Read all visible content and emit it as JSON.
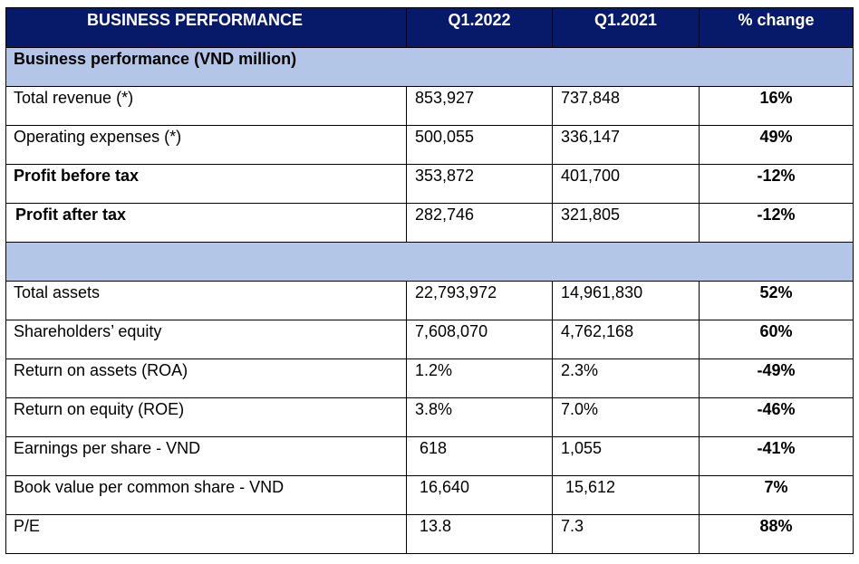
{
  "header": {
    "col_label": "BUSINESS PERFORMANCE",
    "col_q1_2022": "Q1.2022",
    "col_q1_2021": "Q1.2021",
    "col_change": "% change"
  },
  "section1": {
    "title": "Business performance (VND million)"
  },
  "rows1": [
    {
      "label": "Total revenue (*)",
      "q2022": "853,927",
      "q2021": "737,848",
      "change": "16%",
      "bold": false
    },
    {
      "label": "Operating expenses (*)",
      "q2022": "500,055",
      "q2021": "336,147",
      "change": "49%",
      "bold": false
    },
    {
      "label": "Profit before tax",
      "q2022": "353,872",
      "q2021": "401,700",
      "change": "-12%",
      "bold": true
    },
    {
      "label": "Profit after tax",
      "q2022": "282,746",
      "q2021": "321,805",
      "change": "-12%",
      "bold": true
    }
  ],
  "section2": {
    "title": ""
  },
  "rows2": [
    {
      "label": "Total assets",
      "q2022": "22,793,972",
      "q2021": "14,961,830",
      "change": "52%"
    },
    {
      "label": "Shareholders’ equity",
      "q2022": "7,608,070",
      "q2021": "4,762,168",
      "change": "60%"
    },
    {
      "label": "Return on assets (ROA)",
      "q2022": "1.2%",
      "q2021": "2.3%",
      "change": "-49%"
    },
    {
      "label": "Return on equity (ROE)",
      "q2022": "3.8%",
      "q2021": "7.0%",
      "change": "-46%"
    },
    {
      "label": "Earnings per share - VND",
      "q2022": "618",
      "q2021": "1,055",
      "change": "-41%"
    },
    {
      "label": "Book value per common share - VND",
      "q2022": "16,640",
      "q2021": "15,612",
      "change": "7%"
    },
    {
      "label": "P/E",
      "q2022": "13.8",
      "q2021": "7.3",
      "change": "88%"
    }
  ]
}
